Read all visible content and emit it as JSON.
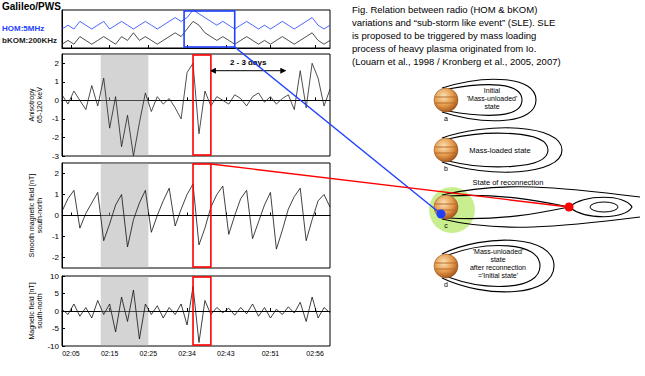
{
  "figure": {
    "title": "Galileo/PWS",
    "caption_lines": [
      "Fig.  Relation between radio (HOM & bKOM)",
      "variations and “sub-storm like event” (SLE). SLE",
      "is proposed to be triggered by mass loading",
      "process of heavy plasma originated from Io.",
      "(Louarn et al., 1998 / Kronberg et al., 2005, 2007)"
    ]
  },
  "chart_data": [
    {
      "type": "line",
      "tick_labels": false,
      "grid": false,
      "x": [
        0,
        0.2,
        0.4,
        0.6,
        0.8,
        1,
        1.2,
        1.4,
        1.6,
        1.8,
        2,
        2.2,
        2.4,
        2.6,
        2.8,
        3,
        3.2,
        3.4,
        3.6,
        3.8,
        4,
        4.2,
        4.4,
        4.6,
        4.8,
        5,
        5.2,
        5.4,
        5.6,
        5.8,
        6,
        6.2,
        6.4,
        6.6,
        6.8,
        7,
        7.2,
        7.4,
        7.6,
        7.8,
        8,
        8.2,
        8.4,
        8.6,
        8.8,
        9
      ],
      "xlim": [
        0,
        9
      ],
      "xticks": [
        {
          "value": 0.3,
          "label": "02:05"
        },
        {
          "value": 1.6,
          "label": "02:15"
        },
        {
          "value": 2.9,
          "label": "02:25"
        },
        {
          "value": 4.2,
          "label": "02:34"
        },
        {
          "value": 5.5,
          "label": "02:43"
        },
        {
          "value": 7.0,
          "label": "02:51"
        },
        {
          "value": 8.5,
          "label": "02:56"
        }
      ],
      "ylim": [
        0,
        10
      ],
      "series": [
        {
          "name": "HOM:5MHz",
          "color": "#1f3fff",
          "values": [
            5,
            6,
            5,
            7,
            6,
            5,
            6,
            7,
            5,
            6,
            7,
            6,
            5,
            6,
            7,
            6,
            5,
            6,
            7,
            8,
            7,
            8,
            10,
            9,
            8,
            7,
            6,
            7,
            6,
            5,
            6,
            7,
            6,
            5,
            6,
            5,
            6,
            7,
            6,
            5,
            6,
            7,
            8,
            6,
            5,
            6
          ]
        },
        {
          "name": "bKOM:200KHz",
          "color": "#222222",
          "values": [
            1,
            2,
            1,
            3,
            2,
            1,
            2,
            3,
            2,
            1,
            3,
            2,
            4,
            2,
            3,
            2,
            1,
            2,
            3,
            4,
            3,
            5,
            7,
            6,
            4,
            3,
            2,
            3,
            2,
            1,
            2,
            3,
            2,
            1,
            2,
            1,
            2,
            3,
            2,
            1,
            2,
            3,
            4,
            2,
            1,
            2
          ]
        }
      ],
      "box": {
        "x": [
          4.1,
          5.8
        ],
        "color": "#1f3fff"
      }
    },
    {
      "type": "line",
      "tick_labels": "y",
      "grid": false,
      "ylabel": "Anisotropy\n65-120 keV",
      "x": [
        0,
        0.2,
        0.4,
        0.6,
        0.8,
        1,
        1.2,
        1.4,
        1.6,
        1.8,
        2,
        2.2,
        2.4,
        2.6,
        2.8,
        3,
        3.2,
        3.4,
        3.6,
        3.8,
        4,
        4.2,
        4.4,
        4.6,
        4.8,
        5,
        5.2,
        5.4,
        5.6,
        5.8,
        6,
        6.2,
        6.4,
        6.6,
        6.8,
        7,
        7.2,
        7.4,
        7.6,
        7.8,
        8,
        8.2,
        8.4,
        8.6,
        8.8,
        9
      ],
      "xlim": [
        0,
        9
      ],
      "xticks": [
        {
          "value": 0.3,
          "label": "02:05"
        },
        {
          "value": 1.6,
          "label": "02:15"
        },
        {
          "value": 2.9,
          "label": "02:25"
        },
        {
          "value": 4.2,
          "label": "02:34"
        },
        {
          "value": 5.5,
          "label": "02:43"
        },
        {
          "value": 7.0,
          "label": "02:51"
        },
        {
          "value": 8.5,
          "label": "02:56"
        }
      ],
      "ylim": [
        -3,
        2.5
      ],
      "yticks": [
        -3,
        -2,
        -1,
        0,
        1,
        2
      ],
      "series": [
        {
          "name": "Anisotropy",
          "color": "#222222",
          "values": [
            0.3,
            -0.2,
            0.5,
            0,
            -0.5,
            0.8,
            -0.3,
            1.2,
            -1.5,
            0.2,
            -2.5,
            -0.8,
            -3,
            -1.2,
            0.4,
            -0.6,
            0.2,
            -0.2,
            0.1,
            -0.4,
            -1,
            1.5,
            2,
            -1.8,
            0.5,
            -0.3,
            0.2,
            0,
            -0.2,
            0.3,
            0.1,
            -0.3,
            0.2,
            0.4,
            -0.1,
            0.2,
            -0.2,
            0.1,
            0.3,
            -0.5,
            1.6,
            -0.4,
            2,
            1.2,
            -0.3,
            0.6
          ]
        }
      ],
      "gray_band": [
        1.3,
        2.9
      ],
      "box": {
        "x": [
          4.4,
          5.0
        ],
        "color": "#ff0000"
      },
      "annotation": {
        "text": "2 - 3 days",
        "x": [
          5.0,
          7.5
        ],
        "y": 1.6
      }
    },
    {
      "type": "line",
      "tick_labels": "y",
      "grid": false,
      "ylabel": "Smooth magnetic field [nT]\nsouth-north",
      "x": [
        0,
        0.2,
        0.4,
        0.6,
        0.8,
        1,
        1.2,
        1.4,
        1.6,
        1.8,
        2,
        2.2,
        2.4,
        2.6,
        2.8,
        3,
        3.2,
        3.4,
        3.6,
        3.8,
        4,
        4.2,
        4.4,
        4.6,
        4.8,
        5,
        5.2,
        5.4,
        5.6,
        5.8,
        6,
        6.2,
        6.4,
        6.6,
        6.8,
        7,
        7.2,
        7.4,
        7.6,
        7.8,
        8,
        8.2,
        8.4,
        8.6,
        8.8,
        9
      ],
      "xlim": [
        0,
        9
      ],
      "xticks": [
        {
          "value": 0.3,
          "label": "02:05"
        },
        {
          "value": 1.6,
          "label": "02:15"
        },
        {
          "value": 2.9,
          "label": "02:25"
        },
        {
          "value": 4.2,
          "label": "02:34"
        },
        {
          "value": 5.5,
          "label": "02:43"
        },
        {
          "value": 7.0,
          "label": "02:51"
        },
        {
          "value": 8.5,
          "label": "02:56"
        }
      ],
      "ylim": [
        -2.5,
        2.5
      ],
      "yticks": [
        -2,
        -1,
        0,
        1,
        2
      ],
      "series": [
        {
          "name": "Smooth magnetic field",
          "color": "#111111",
          "values": [
            0.2,
            0.8,
            1.2,
            -0.6,
            0.1,
            0.6,
            1.1,
            -1.2,
            -0.4,
            0.5,
            1,
            -1.5,
            -0.2,
            0.6,
            1.2,
            -0.8,
            0,
            0.7,
            1.3,
            -0.5,
            0.3,
            1,
            1.5,
            -1.4,
            -0.6,
            0.4,
            1,
            1.4,
            -0.9,
            0,
            0.8,
            1.2,
            -1.1,
            -0.3,
            0.5,
            1.1,
            -1.6,
            -0.7,
            0.3,
            0.9,
            1.3,
            -1.2,
            -0.2,
            0.7,
            1,
            0.4
          ]
        }
      ],
      "gray_band": [
        1.3,
        2.9
      ],
      "box": {
        "x": [
          4.4,
          5.0
        ],
        "color": "#ff0000"
      }
    },
    {
      "type": "line",
      "tick_labels": true,
      "grid": false,
      "ylabel": "Magnetic field [nT]\nsouth-north",
      "x": [
        0,
        0.2,
        0.4,
        0.6,
        0.8,
        1,
        1.2,
        1.4,
        1.6,
        1.8,
        2,
        2.2,
        2.4,
        2.6,
        2.8,
        3,
        3.2,
        3.4,
        3.6,
        3.8,
        4,
        4.2,
        4.4,
        4.6,
        4.8,
        5,
        5.2,
        5.4,
        5.6,
        5.8,
        6,
        6.2,
        6.4,
        6.6,
        6.8,
        7,
        7.2,
        7.4,
        7.6,
        7.8,
        8,
        8.2,
        8.4,
        8.6,
        8.8,
        9
      ],
      "xlim": [
        0,
        9
      ],
      "xticks": [
        {
          "value": 0.3,
          "label": "02:05"
        },
        {
          "value": 1.6,
          "label": "02:15"
        },
        {
          "value": 2.9,
          "label": "02:25"
        },
        {
          "value": 4.2,
          "label": "02:34"
        },
        {
          "value": 5.5,
          "label": "02:43"
        },
        {
          "value": 7.0,
          "label": "02:51"
        },
        {
          "value": 8.5,
          "label": "02:56"
        }
      ],
      "ylim": [
        -10,
        10
      ],
      "yticks": [
        -10,
        -5,
        0,
        5,
        10
      ],
      "series": [
        {
          "name": "Magnetic field",
          "color": "#111111",
          "values": [
            0.5,
            -1,
            2,
            -1.5,
            1,
            -2,
            3,
            -1,
            2,
            -6,
            4,
            -3,
            6,
            -8,
            2,
            -1,
            1.5,
            -2,
            1,
            -1,
            2,
            -4,
            7,
            -9,
            3,
            -1,
            1,
            -0.5,
            0.8,
            -1.2,
            1,
            -0.8,
            2,
            -1.5,
            1,
            -2,
            0.5,
            -1,
            1.2,
            -0.6,
            2.5,
            -3,
            4,
            -2,
            1,
            -0.5
          ]
        }
      ],
      "gray_band": [
        1.3,
        2.9
      ],
      "box": {
        "x": [
          4.4,
          5.0
        ],
        "color": "#ff0000"
      }
    }
  ],
  "diagram": {
    "states": [
      {
        "letter": "a",
        "label": [
          "Initial",
          "'Mass-unloaded'",
          "state"
        ]
      },
      {
        "letter": "b",
        "label": [
          "Mass-loaded state"
        ]
      },
      {
        "letter": "c",
        "label": [
          "State of reconnection"
        ]
      },
      {
        "letter": "d",
        "label": [
          "'Mass-unloaded'",
          "state",
          "after reconnection",
          "='Initial state'"
        ]
      }
    ]
  }
}
